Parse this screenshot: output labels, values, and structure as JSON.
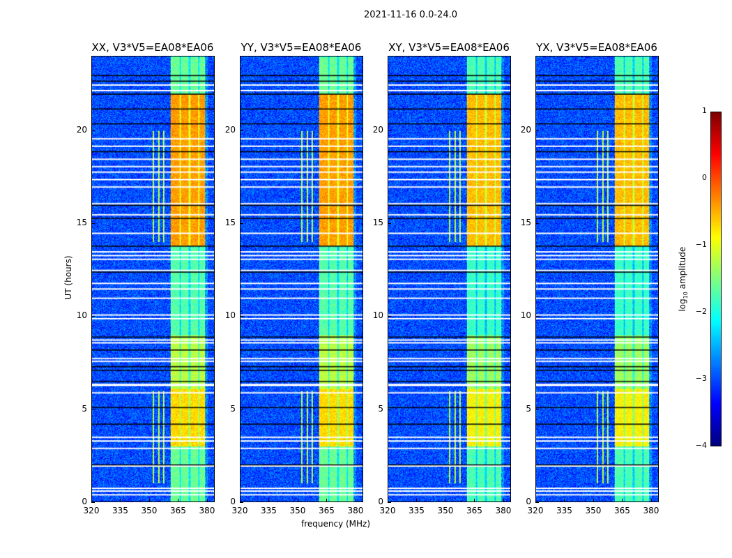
{
  "chart_data": {
    "type": "heatmap",
    "suptitle": "2021-11-16 0.0-24.0",
    "panels": [
      {
        "title": "XX, V3*V5=EA08*EA06"
      },
      {
        "title": "YY, V3*V5=EA08*EA06"
      },
      {
        "title": "XY, V3*V5=EA08*EA06"
      },
      {
        "title": "YX, V3*V5=EA08*EA06"
      }
    ],
    "xlabel": "frequency (MHz)",
    "ylabel": "UT (hours)",
    "xlim": [
      320,
      384
    ],
    "ylim": [
      0,
      24
    ],
    "xticks": [
      "320",
      "335",
      "350",
      "365",
      "380"
    ],
    "xtick_values": [
      320,
      335,
      350,
      365,
      380
    ],
    "yticks": [
      "0",
      "5",
      "10",
      "15",
      "20"
    ],
    "ytick_values": [
      0,
      5,
      10,
      15,
      20
    ],
    "colorbar": {
      "label_main": "log",
      "label_sub": "10",
      "label_rest": " amplitude",
      "range": [
        -4,
        1
      ],
      "ticks": [
        "1",
        "0",
        "−1",
        "−2",
        "−3",
        "−4"
      ],
      "tick_values": [
        1,
        0,
        -1,
        -2,
        -3,
        -4
      ],
      "colormap": "jet"
    },
    "background_level": -3,
    "rfi_band_mhz": [
      361,
      379
    ],
    "band_level_by_time": [
      {
        "from": 0,
        "to": 3,
        "level": -1.6
      },
      {
        "from": 3,
        "to": 6.1,
        "level": -0.7
      },
      {
        "from": 6.1,
        "to": 9,
        "level": -1.2
      },
      {
        "from": 9,
        "to": 13.8,
        "level": -1.7
      },
      {
        "from": 13.8,
        "to": 22,
        "level": -0.4
      },
      {
        "from": 22,
        "to": 24,
        "level": -1.6
      }
    ],
    "flagged_hours_white": [
      0.4,
      0.6,
      0.75,
      1.95,
      2.9,
      3.3,
      3.5,
      5.9,
      6.3,
      6.35,
      7.6,
      7.75,
      8.6,
      8.75,
      9.9,
      10.1,
      11.0,
      11.5,
      11.8,
      12.5,
      13.1,
      13.3,
      13.5,
      14.5,
      15.5,
      16.1,
      17.0,
      17.4,
      17.8,
      18.1,
      18.5,
      19.2,
      19.6,
      22.2,
      22.5
    ],
    "flagged_hours_black": [
      2.0,
      4.2,
      5.1,
      6.5,
      7.1,
      7.3,
      8.2,
      8.9,
      12.4,
      13.8,
      15.3,
      16.0,
      18.9,
      20.4,
      21.2,
      22.0,
      22.7,
      23.0
    ]
  }
}
